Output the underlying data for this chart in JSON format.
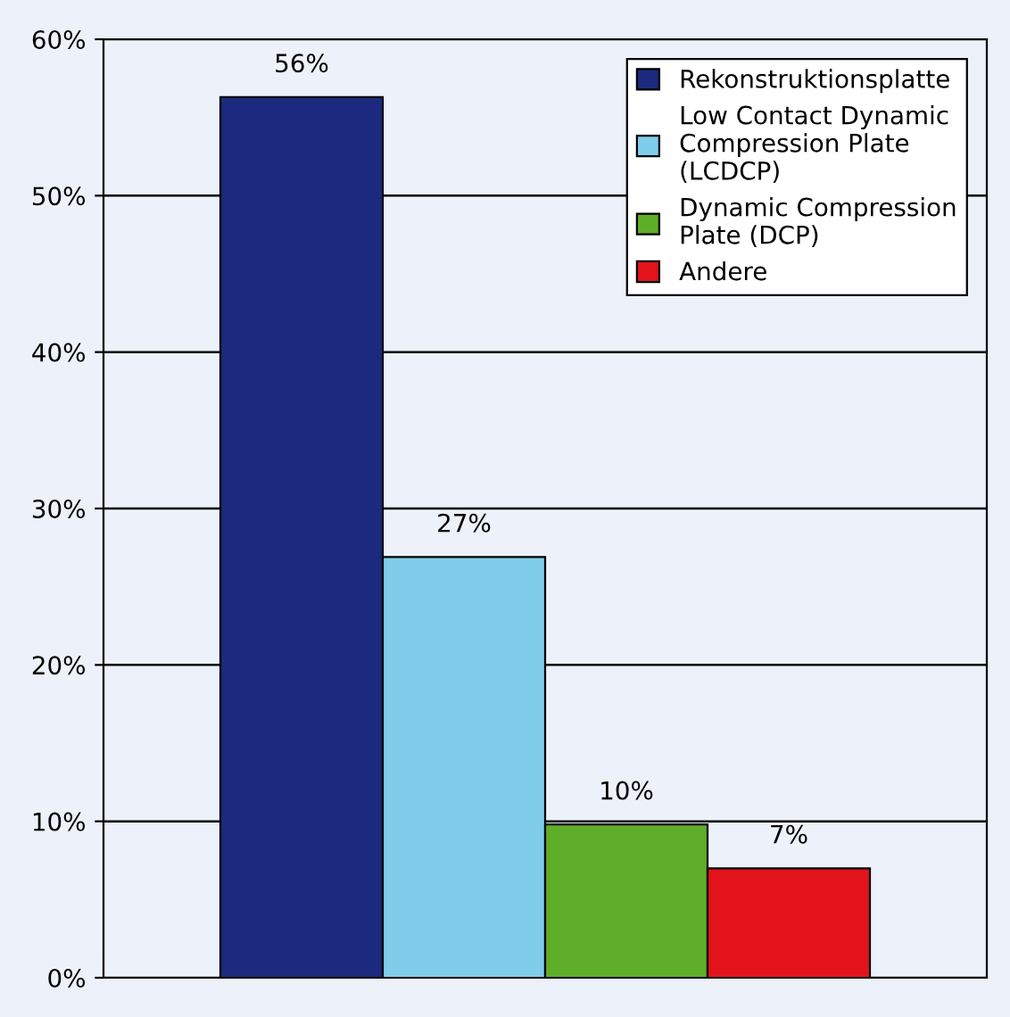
{
  "chart_data": {
    "type": "bar",
    "categories": [
      null
    ],
    "series": [
      {
        "name": "Rekonstruktionsplatte",
        "color": "#1b2a7e",
        "values": [
          56.3
        ],
        "value_labels": [
          "56%"
        ]
      },
      {
        "name": "Low Contact Dynamic Compression Plate (LCDCP)",
        "color": "#80cdeb",
        "values": [
          26.9
        ],
        "value_labels": [
          "27%"
        ]
      },
      {
        "name": "Dynamic Compression Plate (DCP)",
        "color": "#5eae29",
        "values": [
          9.8
        ],
        "value_labels": [
          "10%"
        ]
      },
      {
        "name": "Andere",
        "color": "#e2131b",
        "values": [
          7.0
        ],
        "value_labels": [
          "7%"
        ]
      }
    ],
    "ylim": [
      0,
      60
    ],
    "yticks": [
      {
        "value": 0,
        "label": "0%"
      },
      {
        "value": 10,
        "label": "10%"
      },
      {
        "value": 20,
        "label": "20%"
      },
      {
        "value": 30,
        "label": "30%"
      },
      {
        "value": 40,
        "label": "40%"
      },
      {
        "value": 50,
        "label": "50%"
      },
      {
        "value": 60,
        "label": "60%"
      }
    ],
    "grid": "y",
    "legend": "top right"
  }
}
